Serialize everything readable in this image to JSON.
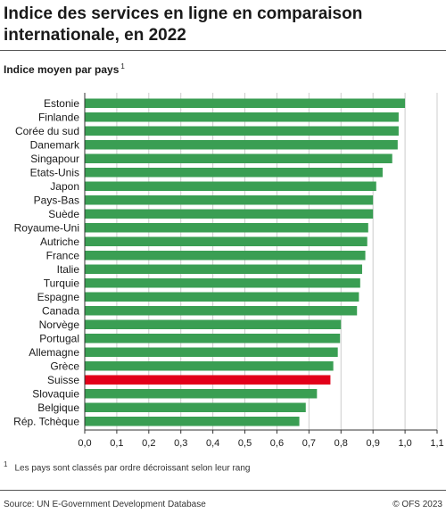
{
  "title": "Indice des services en ligne en comparaison internationale, en 2022",
  "subtitle": "Indice moyen par pays",
  "subtitle_note": "1",
  "footnote_num": "1",
  "footnote_text": "Les pays sont classés par ordre décroissant selon leur rang",
  "source": "Source: UN E-Government Development Database",
  "copyright": "© OFS 2023",
  "colors": {
    "bar": "#3a9e53",
    "highlight": "#e2001a",
    "grid": "#cccccc",
    "axis": "#333333"
  },
  "chart_data": {
    "type": "bar",
    "orientation": "horizontal",
    "categories": [
      "Estonie",
      "Finlande",
      "Corée du sud",
      "Danemark",
      "Singapour",
      "Etats-Unis",
      "Japon",
      "Pays-Bas",
      "Suède",
      "Royaume-Uni",
      "Autriche",
      "France",
      "Italie",
      "Turquie",
      "Espagne",
      "Canada",
      "Norvège",
      "Portugal",
      "Allemagne",
      "Grèce",
      "Suisse",
      "Slovaquie",
      "Belgique",
      "Rép. Tchèque"
    ],
    "values": [
      1.0,
      0.98,
      0.98,
      0.977,
      0.96,
      0.93,
      0.91,
      0.9,
      0.9,
      0.885,
      0.882,
      0.876,
      0.866,
      0.86,
      0.856,
      0.85,
      0.8,
      0.797,
      0.79,
      0.776,
      0.767,
      0.725,
      0.69,
      0.67
    ],
    "highlight": "Suisse",
    "xlim": [
      0,
      1.1
    ],
    "xticks": [
      "0,0",
      "0,1",
      "0,2",
      "0,3",
      "0,4",
      "0,5",
      "0,6",
      "0,7",
      "0,8",
      "0,9",
      "1,0",
      "1,1"
    ],
    "grid": true
  }
}
